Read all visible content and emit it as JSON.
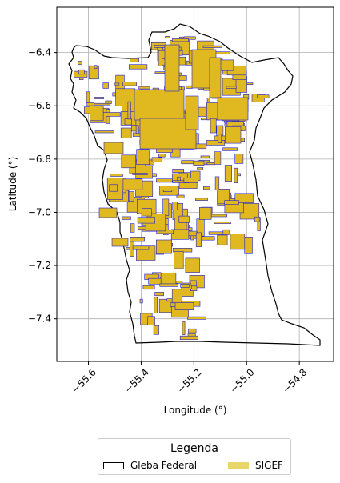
{
  "map": {
    "xlabel": "Longitude (°)",
    "ylabel": "Latitude (°)",
    "xlim": [
      -55.72,
      -54.67
    ],
    "ylim": [
      -7.56,
      -6.23
    ],
    "xticks": [
      {
        "value": -55.6,
        "label": "−55.6"
      },
      {
        "value": -55.4,
        "label": "−55.4"
      },
      {
        "value": -55.2,
        "label": "−55.2"
      },
      {
        "value": -55.0,
        "label": "−55.0"
      },
      {
        "value": -54.8,
        "label": "−54.8"
      }
    ],
    "yticks": [
      {
        "value": -6.4,
        "label": "−6.4"
      },
      {
        "value": -6.6,
        "label": "−6.6"
      },
      {
        "value": -6.8,
        "label": "−6.8"
      },
      {
        "value": -7.0,
        "label": "−7.0"
      },
      {
        "value": -7.2,
        "label": "−7.2"
      },
      {
        "value": -7.4,
        "label": "−7.4"
      }
    ],
    "grid": true,
    "colors": {
      "gleba_edge": "#000000",
      "sigef_fill": "#e0b820",
      "sigef_edge": "#2222cc",
      "grid": "#b0b0b0"
    }
  },
  "legend": {
    "title": "Legenda",
    "entries": [
      {
        "label": "Gleba Federal"
      },
      {
        "label": "SIGEF"
      }
    ]
  }
}
